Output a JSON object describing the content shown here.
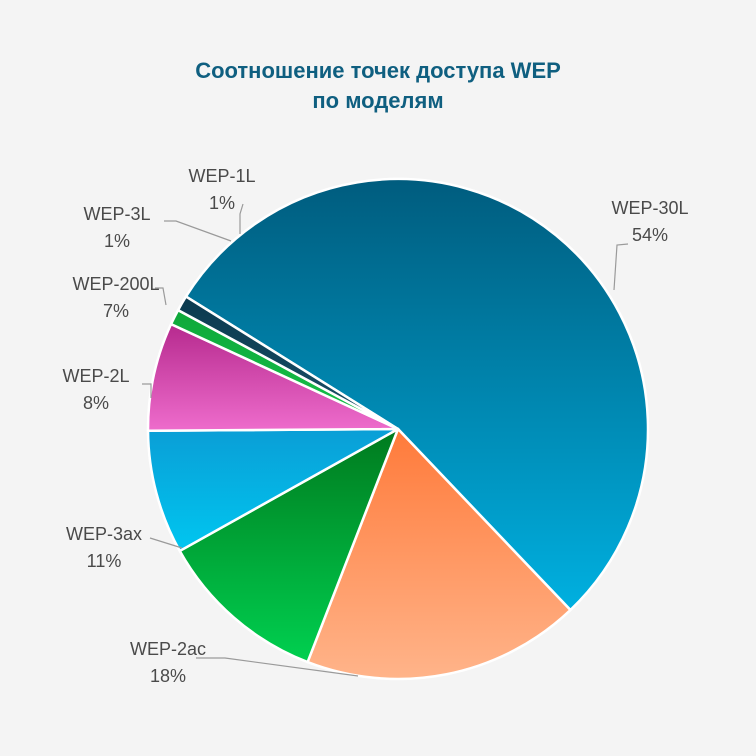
{
  "chart_data": {
    "type": "pie",
    "title_lines": [
      "Соотношение точек доступа WEP",
      "по моделям"
    ],
    "slices": [
      {
        "label": "WEP-30L",
        "value": 54,
        "pct_text": "54%",
        "color_top": "#005c7e",
        "color_bottom": "#00b0e0"
      },
      {
        "label": "WEP-2ac",
        "value": 18,
        "pct_text": "18%",
        "color_top": "#ff7a3a",
        "color_bottom": "#ffb48a"
      },
      {
        "label": "WEP-3ax",
        "value": 11,
        "pct_text": "11%",
        "color_top": "#007a1e",
        "color_bottom": "#00d050"
      },
      {
        "label": "WEP-2L",
        "value": 8,
        "pct_text": "8%",
        "color_top": "#0a9ed6",
        "color_bottom": "#00c6f0"
      },
      {
        "label": "WEP-200L",
        "value": 7,
        "pct_text": "7%",
        "color_top": "#b62a8e",
        "color_bottom": "#ee6ccc"
      },
      {
        "label": "WEP-3L",
        "value": 1,
        "pct_text": "1%",
        "color_top": "#0fa83a",
        "color_bottom": "#15c24a"
      },
      {
        "label": "WEP-1L",
        "value": 1,
        "pct_text": "1%",
        "color_top": "#0b3a4f",
        "color_bottom": "#1a5068"
      }
    ]
  }
}
